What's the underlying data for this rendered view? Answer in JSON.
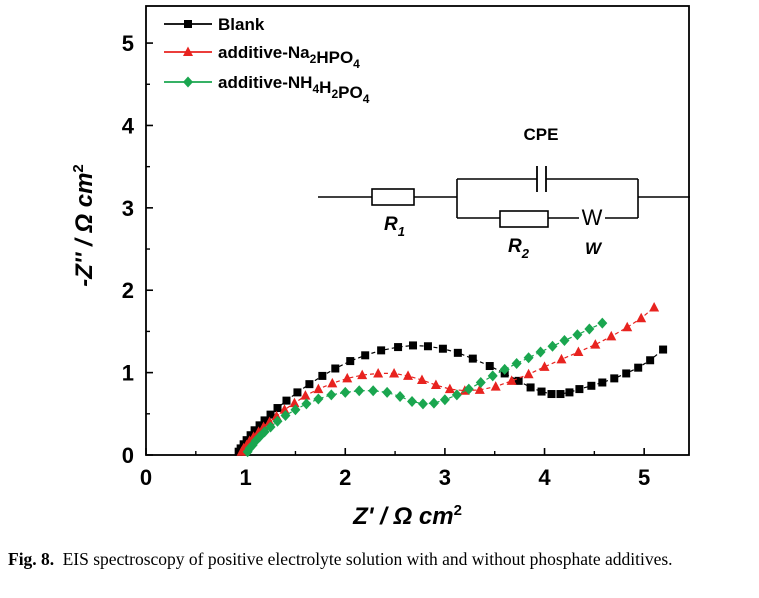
{
  "chart_data": {
    "type": "scatter",
    "xlabel": "Z' / Ω cm2",
    "ylabel": "-Z'' / Ω cm2",
    "xlim": [
      0,
      5.45
    ],
    "ylim": [
      0,
      5.45
    ],
    "x_ticks": [
      "0",
      "1",
      "2",
      "3",
      "4",
      "5"
    ],
    "y_ticks": [
      "0",
      "1",
      "2",
      "3",
      "4",
      "5"
    ],
    "legend_position": "top-left",
    "series": [
      {
        "name": "Blank",
        "color": "#000000",
        "marker": "square",
        "x": [
          0.93,
          0.95,
          0.98,
          1.01,
          1.05,
          1.09,
          1.14,
          1.19,
          1.25,
          1.32,
          1.41,
          1.52,
          1.64,
          1.77,
          1.9,
          2.05,
          2.2,
          2.36,
          2.53,
          2.68,
          2.83,
          2.98,
          3.13,
          3.28,
          3.45,
          3.6,
          3.74,
          3.86,
          3.97,
          4.07,
          4.16,
          4.25,
          4.35,
          4.47,
          4.58,
          4.7,
          4.82,
          4.94,
          5.06,
          5.19
        ],
        "y": [
          0.04,
          0.08,
          0.13,
          0.18,
          0.24,
          0.3,
          0.36,
          0.42,
          0.49,
          0.57,
          0.66,
          0.76,
          0.86,
          0.96,
          1.05,
          1.14,
          1.21,
          1.27,
          1.31,
          1.33,
          1.32,
          1.29,
          1.24,
          1.17,
          1.08,
          0.99,
          0.9,
          0.82,
          0.77,
          0.74,
          0.74,
          0.76,
          0.8,
          0.84,
          0.88,
          0.93,
          0.99,
          1.06,
          1.15,
          1.28
        ]
      },
      {
        "name": "additive-Na2HPO4",
        "color": "#e8231f",
        "marker": "triangle",
        "x": [
          0.96,
          0.98,
          1.01,
          1.04,
          1.08,
          1.13,
          1.18,
          1.24,
          1.31,
          1.39,
          1.49,
          1.6,
          1.73,
          1.87,
          2.02,
          2.17,
          2.33,
          2.49,
          2.63,
          2.77,
          2.91,
          3.05,
          3.2,
          3.35,
          3.51,
          3.67,
          3.84,
          4.0,
          4.17,
          4.34,
          4.51,
          4.67,
          4.83,
          4.97,
          5.1
        ],
        "y": [
          0.04,
          0.08,
          0.12,
          0.17,
          0.22,
          0.28,
          0.34,
          0.4,
          0.47,
          0.55,
          0.63,
          0.72,
          0.8,
          0.87,
          0.93,
          0.97,
          0.99,
          0.99,
          0.96,
          0.91,
          0.85,
          0.8,
          0.78,
          0.79,
          0.83,
          0.9,
          0.98,
          1.07,
          1.16,
          1.25,
          1.34,
          1.44,
          1.55,
          1.66,
          1.79
        ]
      },
      {
        "name": "additive-NH4H2PO4",
        "color": "#1aa64f",
        "marker": "diamond",
        "x": [
          1.02,
          1.04,
          1.07,
          1.1,
          1.14,
          1.19,
          1.25,
          1.32,
          1.4,
          1.5,
          1.61,
          1.73,
          1.86,
          2.0,
          2.14,
          2.28,
          2.42,
          2.55,
          2.67,
          2.78,
          2.89,
          3.0,
          3.12,
          3.24,
          3.36,
          3.48,
          3.6,
          3.72,
          3.84,
          3.96,
          4.08,
          4.2,
          4.33,
          4.45,
          4.58
        ],
        "y": [
          0.04,
          0.08,
          0.12,
          0.17,
          0.22,
          0.28,
          0.34,
          0.41,
          0.48,
          0.55,
          0.62,
          0.68,
          0.73,
          0.76,
          0.78,
          0.78,
          0.76,
          0.71,
          0.65,
          0.62,
          0.63,
          0.67,
          0.73,
          0.8,
          0.88,
          0.96,
          1.04,
          1.11,
          1.18,
          1.25,
          1.32,
          1.39,
          1.46,
          1.53,
          1.6
        ]
      }
    ]
  },
  "circuit": {
    "cpe_label": "CPE",
    "r1_label": "R",
    "r1_sub": "1",
    "r2_label": "R",
    "r2_sub": "2",
    "w_symbol": "W",
    "w_label": "W"
  },
  "caption": {
    "figure_label": "Fig. 8.",
    "text": "EIS spectroscopy of positive electrolyte solution with and without phosphate additives."
  }
}
